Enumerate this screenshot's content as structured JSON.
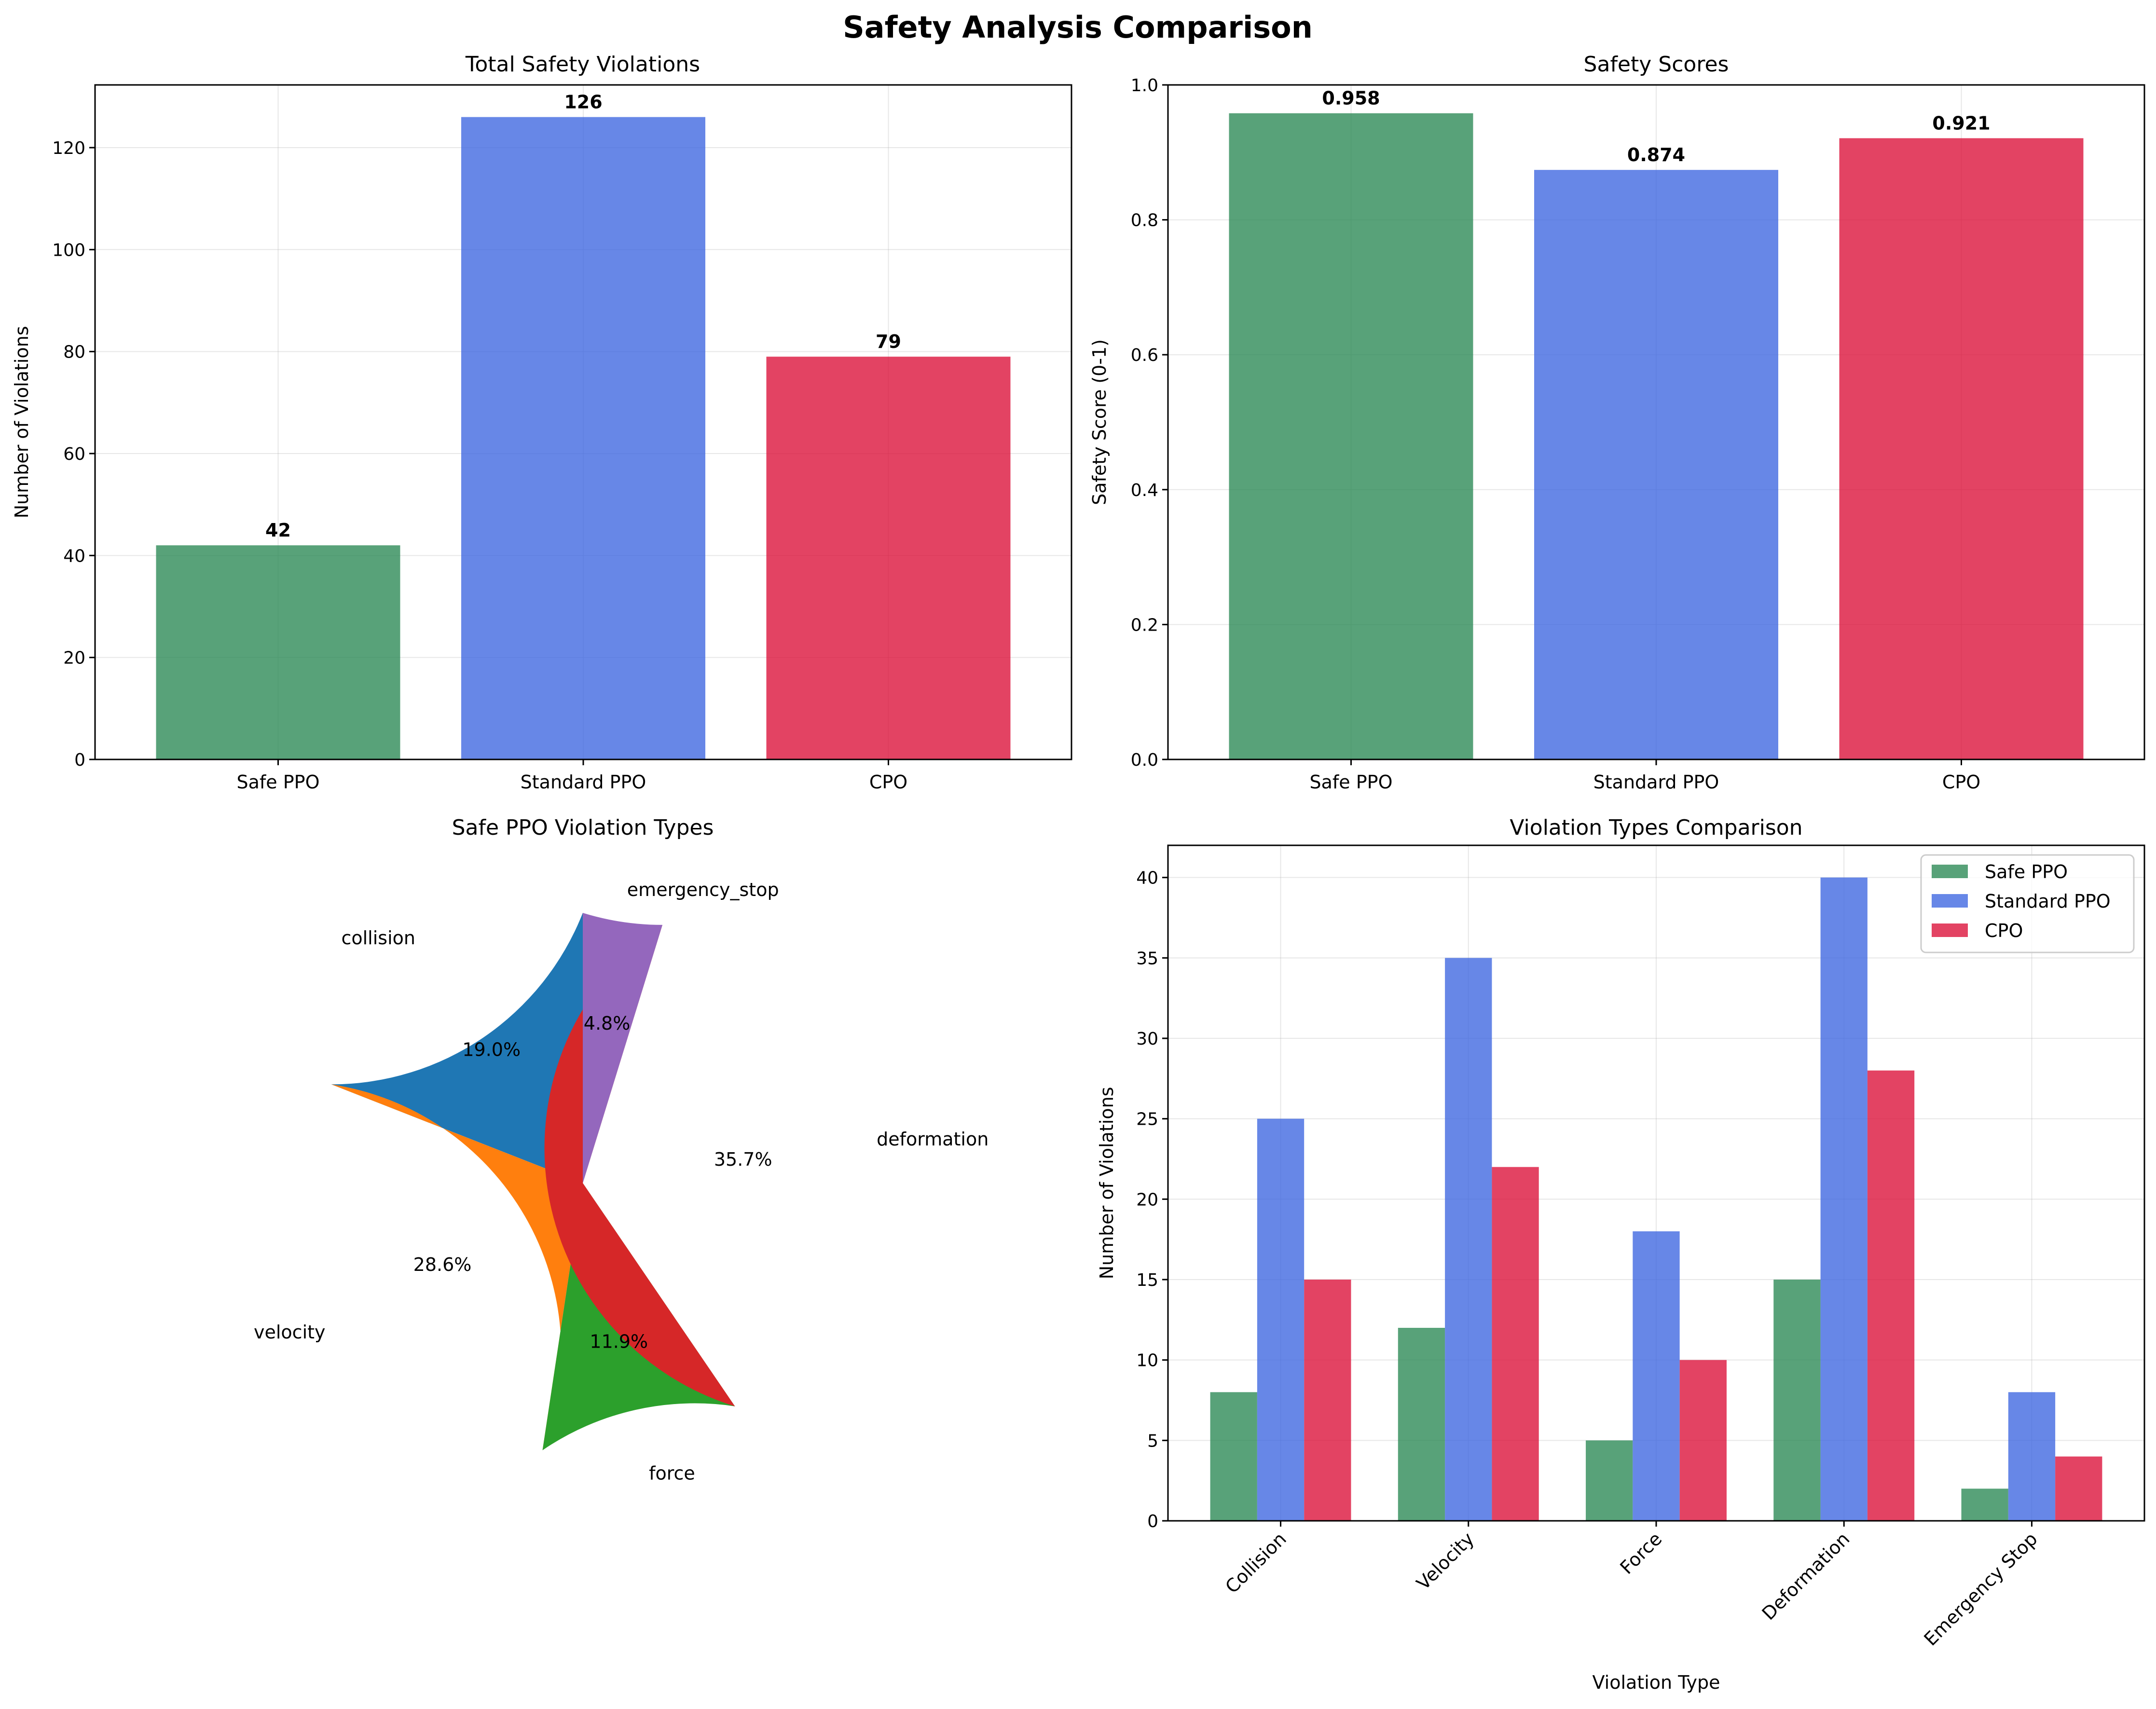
{
  "figure": {
    "title": "Safety Analysis Comparison"
  },
  "colors": {
    "safe_ppo": "#2E8B57",
    "standard_ppo": "#4169E1",
    "cpo": "#DC143C",
    "grid": "#b0b0b0",
    "axis": "#000000"
  },
  "chart_data": [
    {
      "type": "bar",
      "title": "Total Safety Violations",
      "xlabel": "",
      "ylabel": "Number of Violations",
      "categories": [
        "Safe PPO",
        "Standard PPO",
        "CPO"
      ],
      "values": [
        42,
        126,
        79
      ],
      "value_labels": [
        "42",
        "126",
        "79"
      ],
      "ylim": [
        0,
        132.3
      ],
      "yticks": [
        0,
        20,
        40,
        60,
        80,
        100,
        120
      ],
      "grid": true
    },
    {
      "type": "bar",
      "title": "Safety Scores",
      "xlabel": "",
      "ylabel": "Safety Score (0-1)",
      "categories": [
        "Safe PPO",
        "Standard PPO",
        "CPO"
      ],
      "values": [
        0.958,
        0.874,
        0.921
      ],
      "value_labels": [
        "0.958",
        "0.874",
        "0.921"
      ],
      "ylim": [
        0,
        1.0
      ],
      "yticks": [
        "0.0",
        "0.2",
        "0.4",
        "0.6",
        "0.8",
        "1.0"
      ],
      "grid": true
    },
    {
      "type": "pie",
      "title": "Safe PPO Violation Types",
      "labels": [
        "collision",
        "velocity",
        "force",
        "deformation",
        "emergency_stop"
      ],
      "values": [
        8,
        12,
        5,
        15,
        2
      ],
      "percent_labels": [
        "19.0%",
        "28.6%",
        "11.9%",
        "35.7%",
        "4.8%"
      ],
      "colors": [
        "#1f77b4",
        "#ff7f0e",
        "#2ca02c",
        "#d62728",
        "#9467bd"
      ],
      "start_angle": 90
    },
    {
      "type": "bar",
      "title": "Violation Types Comparison",
      "xlabel": "Violation Type",
      "ylabel": "Number of Violations",
      "categories": [
        "Collision",
        "Velocity",
        "Force",
        "Deformation",
        "Emergency Stop"
      ],
      "series": [
        {
          "name": "Safe PPO",
          "values": [
            8,
            12,
            5,
            15,
            2
          ]
        },
        {
          "name": "Standard PPO",
          "values": [
            25,
            35,
            18,
            40,
            8
          ]
        },
        {
          "name": "CPO",
          "values": [
            15,
            22,
            10,
            28,
            4
          ]
        }
      ],
      "ylim": [
        0,
        42
      ],
      "yticks": [
        0,
        5,
        10,
        15,
        20,
        25,
        30,
        35,
        40
      ],
      "legend": "top-right",
      "grid": true
    }
  ]
}
